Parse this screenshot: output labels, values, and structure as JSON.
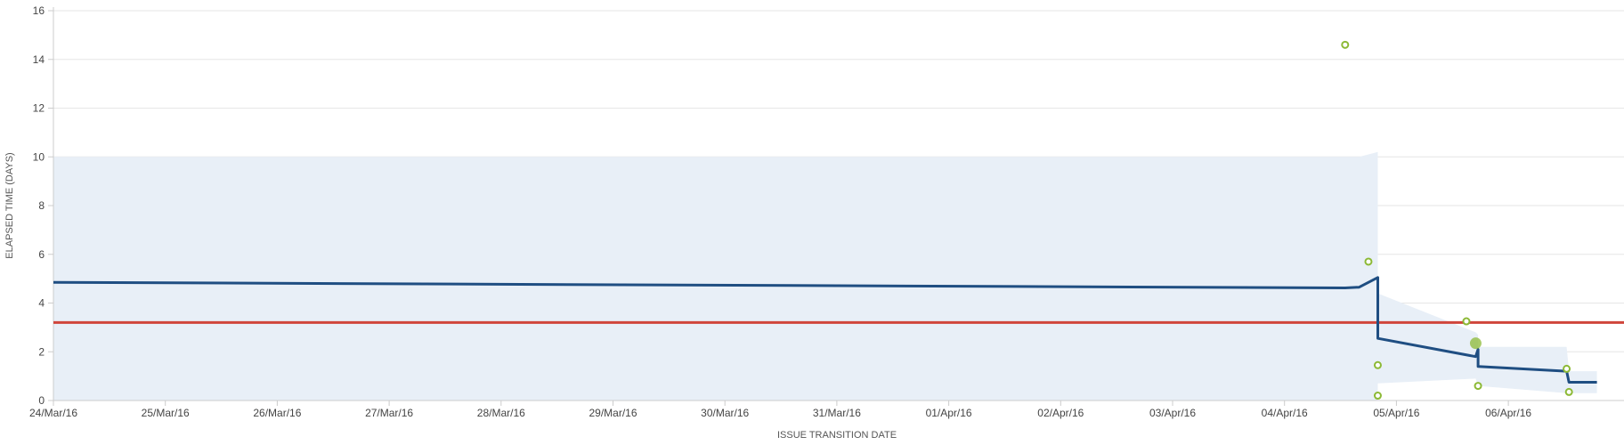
{
  "chart_data": {
    "type": "scatter",
    "title": "",
    "xlabel": "ISSUE TRANSITION DATE",
    "ylabel": "ELAPSED TIME (DAYS)",
    "ylim": [
      0,
      16
    ],
    "yticks": [
      "0",
      "2",
      "4",
      "6",
      "8",
      "10",
      "12",
      "14",
      "16"
    ],
    "xticks": [
      "24/Mar/16",
      "25/Mar/16",
      "26/Mar/16",
      "27/Mar/16",
      "28/Mar/16",
      "29/Mar/16",
      "30/Mar/16",
      "31/Mar/16",
      "01/Apr/16",
      "02/Apr/16",
      "03/Apr/16",
      "04/Apr/16",
      "05/Apr/16",
      "06/Apr/16"
    ],
    "xlim": [
      "2016-03-24 00:00",
      "2016-04-06 19:00"
    ],
    "grid": true,
    "colors": {
      "band": "#e8eff7",
      "rolling": "#1f4e82",
      "average": "#d0453b",
      "points": "#8cb935",
      "grid": "#e6e6e6",
      "axis": "#cccccc"
    },
    "average": 3.2,
    "rolling_average": [
      {
        "x": "2016-03-24 00:00",
        "y": 4.85
      },
      {
        "x": "2016-04-04 13:00",
        "y": 4.62
      },
      {
        "x": "2016-04-04 16:00",
        "y": 4.65
      },
      {
        "x": "2016-04-04 20:00",
        "y": 5.05
      },
      {
        "x": "2016-04-04 20:00",
        "y": 2.55
      },
      {
        "x": "2016-04-05 17:00",
        "y": 1.8
      },
      {
        "x": "2016-04-05 17:30",
        "y": 2.1
      },
      {
        "x": "2016-04-05 17:30",
        "y": 1.4
      },
      {
        "x": "2016-04-06 12:30",
        "y": 1.2
      },
      {
        "x": "2016-04-06 13:00",
        "y": 0.75
      },
      {
        "x": "2016-04-06 19:00",
        "y": 0.75
      }
    ],
    "band_upper": [
      {
        "x": "2016-03-24 00:00",
        "y": 10.0
      },
      {
        "x": "2016-04-04 16:00",
        "y": 10.0
      },
      {
        "x": "2016-04-04 20:00",
        "y": 10.2
      },
      {
        "x": "2016-04-04 20:00",
        "y": 4.4
      },
      {
        "x": "2016-04-05 17:00",
        "y": 2.8
      },
      {
        "x": "2016-04-05 17:30",
        "y": 2.7
      },
      {
        "x": "2016-04-05 17:30",
        "y": 2.2
      },
      {
        "x": "2016-04-06 12:30",
        "y": 2.2
      },
      {
        "x": "2016-04-06 13:00",
        "y": 1.2
      },
      {
        "x": "2016-04-06 19:00",
        "y": 1.2
      }
    ],
    "band_lower": [
      {
        "x": "2016-04-06 19:00",
        "y": 0.3
      },
      {
        "x": "2016-04-06 13:00",
        "y": 0.3
      },
      {
        "x": "2016-04-06 12:30",
        "y": 0.3
      },
      {
        "x": "2016-04-05 17:30",
        "y": 0.6
      },
      {
        "x": "2016-04-05 17:30",
        "y": 0.6
      },
      {
        "x": "2016-04-05 17:00",
        "y": 0.9
      },
      {
        "x": "2016-04-04 20:00",
        "y": 0.7
      },
      {
        "x": "2016-04-04 20:00",
        "y": 0
      },
      {
        "x": "2016-03-24 00:00",
        "y": 0
      }
    ],
    "points": [
      {
        "x": "2016-04-04 13:00",
        "y": 14.6,
        "filled": false
      },
      {
        "x": "2016-04-04 18:00",
        "y": 5.7,
        "filled": false
      },
      {
        "x": "2016-04-04 20:00",
        "y": 1.45,
        "filled": false
      },
      {
        "x": "2016-04-04 20:00",
        "y": 0.2,
        "filled": false
      },
      {
        "x": "2016-04-05 15:00",
        "y": 3.25,
        "filled": false
      },
      {
        "x": "2016-04-05 17:00",
        "y": 2.35,
        "filled": true
      },
      {
        "x": "2016-04-05 17:30",
        "y": 0.6,
        "filled": false
      },
      {
        "x": "2016-04-06 12:30",
        "y": 1.3,
        "filled": false
      },
      {
        "x": "2016-04-06 13:00",
        "y": 0.35,
        "filled": false
      }
    ]
  }
}
